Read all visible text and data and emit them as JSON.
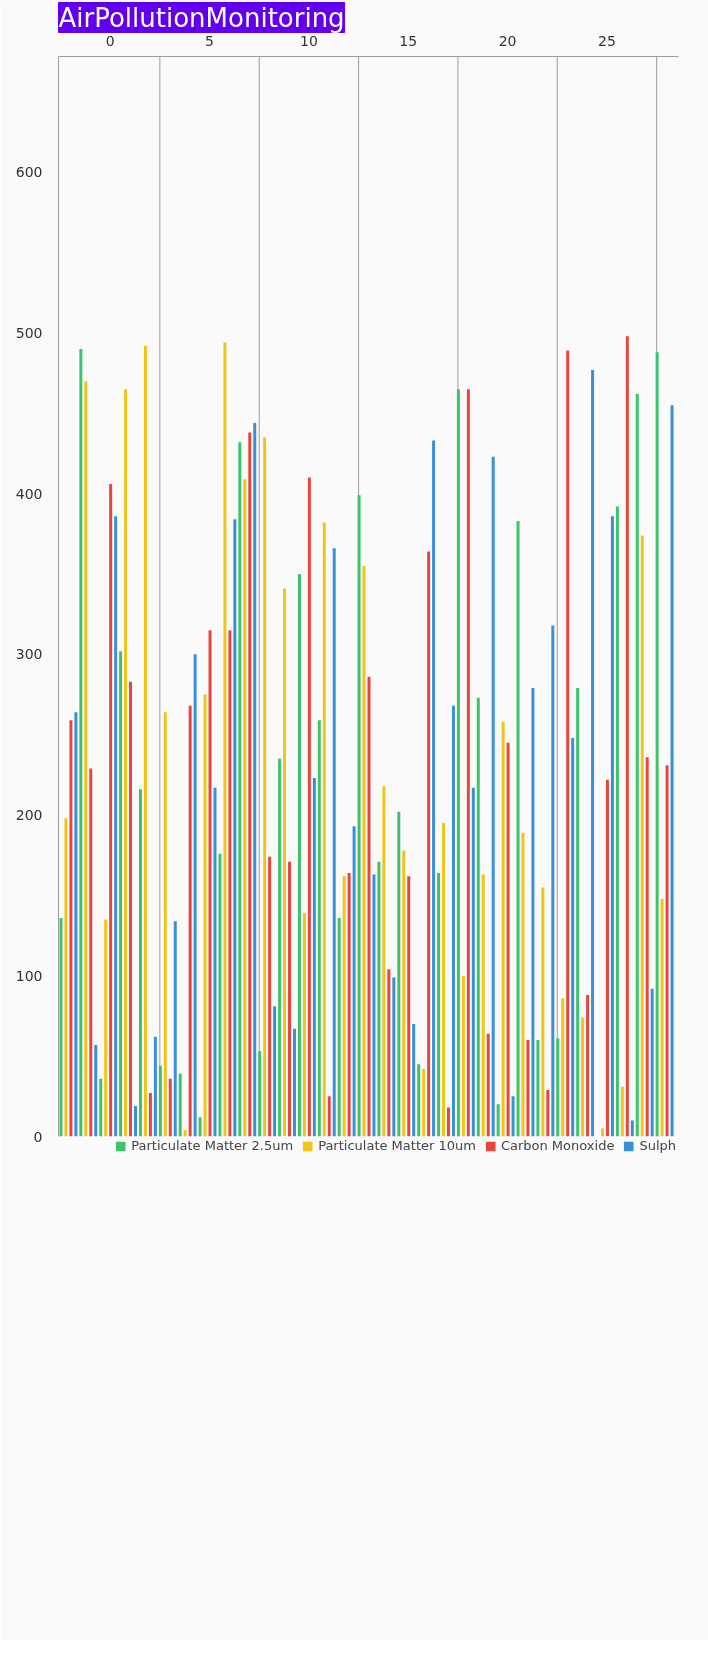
{
  "chart_data": {
    "type": "bar",
    "title": "AirPollutionMonitoring",
    "x": [
      -2.1,
      -1.1,
      -0.1,
      0.9,
      1.9,
      2.9,
      3.9,
      4.9,
      5.9,
      6.9,
      7.9,
      8.9,
      9.9,
      10.9,
      11.9,
      12.9,
      13.9,
      14.9,
      15.9,
      16.9,
      17.9,
      18.9,
      19.9,
      20.9,
      21.9,
      22.9,
      23.9,
      24.9,
      25.9,
      26.9,
      27.9
    ],
    "series": [
      {
        "name": "Particulate Matter 2.5um",
        "color": "#3cc46c",
        "values": [
          136,
          490,
          36,
          302,
          216,
          44,
          39,
          12,
          176,
          432,
          53,
          235,
          350,
          259,
          136,
          399,
          171,
          202,
          45,
          164,
          465,
          273,
          20,
          383,
          60,
          61,
          279,
          0,
          392,
          462,
          488
        ]
      },
      {
        "name": "Particulate Matter 10um",
        "color": "#f0c419",
        "values": [
          198,
          470,
          135,
          465,
          492,
          264,
          4,
          275,
          494,
          409,
          435,
          341,
          139,
          382,
          162,
          355,
          218,
          178,
          42,
          195,
          100,
          163,
          258,
          189,
          155,
          86,
          74,
          5,
          31,
          374,
          148
        ]
      },
      {
        "name": "Carbon Monoxide",
        "color": "#e8463c",
        "values": [
          259,
          229,
          406,
          283,
          27,
          36,
          268,
          315,
          315,
          438,
          174,
          171,
          410,
          25,
          164,
          286,
          104,
          162,
          364,
          18,
          465,
          64,
          245,
          60,
          29,
          489,
          88,
          222,
          498,
          236,
          231
        ]
      },
      {
        "name": "Sulph",
        "color": "#3a8fd6",
        "values": [
          264,
          57,
          386,
          19,
          62,
          134,
          300,
          217,
          384,
          444,
          81,
          67,
          223,
          366,
          193,
          163,
          99,
          70,
          433,
          268,
          217,
          423,
          25,
          279,
          318,
          248,
          477,
          386,
          10,
          92,
          455
        ]
      }
    ],
    "xlim": [
      -2.6,
      28.6
    ],
    "xticks": [
      0,
      5,
      10,
      15,
      20,
      25
    ],
    "ylim": [
      0,
      672
    ],
    "yticks": [
      0,
      100,
      200,
      300,
      400,
      500,
      600
    ],
    "ref_lines": [
      {
        "axis": "x",
        "value": 2.5,
        "color": "#9e9e9e"
      },
      {
        "axis": "x",
        "value": 7.5,
        "color": "#9e9e9e"
      },
      {
        "axis": "x",
        "value": 12.5,
        "color": "#9e9e9e"
      },
      {
        "axis": "x",
        "value": 17.5,
        "color": "#9e9e9e"
      },
      {
        "axis": "x",
        "value": 22.5,
        "color": "#9e9e9e"
      },
      {
        "axis": "x",
        "value": 27.5,
        "color": "#9e9e9e"
      }
    ],
    "grid": false,
    "legend": "bottom"
  }
}
